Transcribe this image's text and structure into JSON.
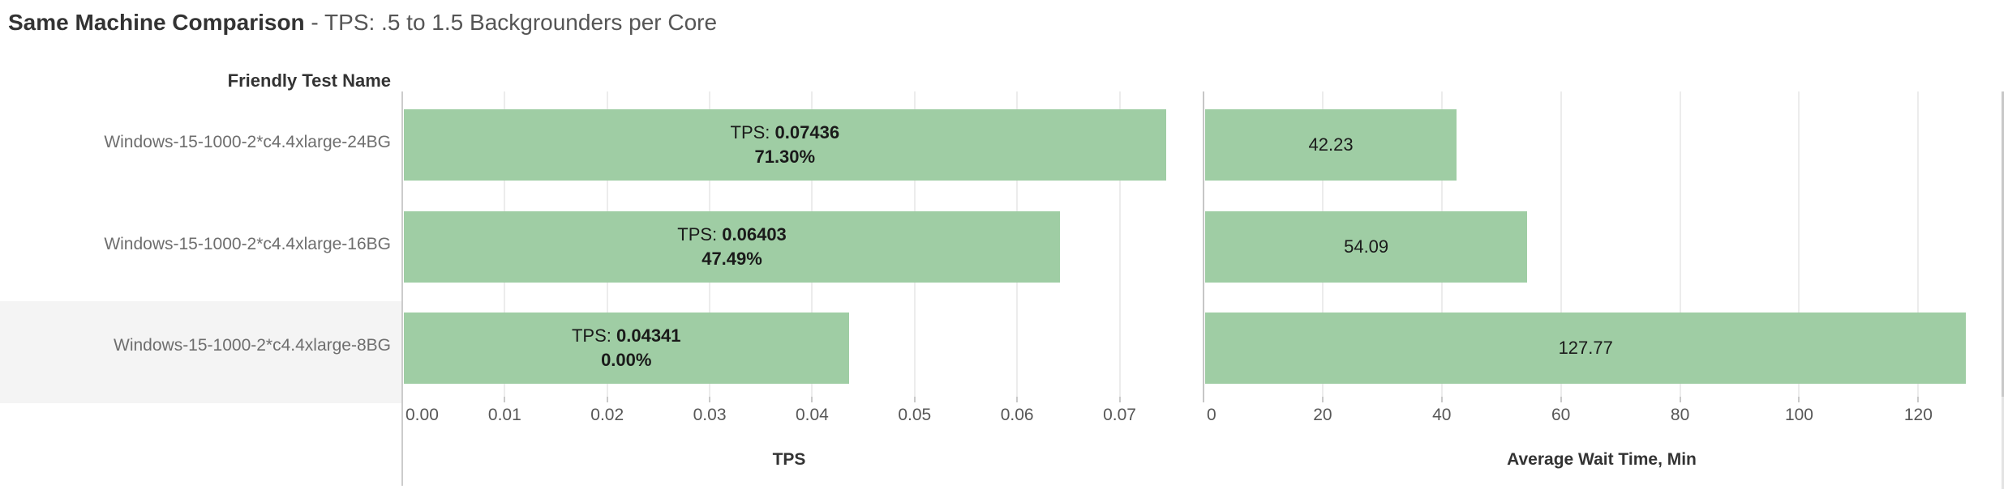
{
  "title": {
    "bold": "Same Machine Comparison",
    "rest": " - TPS: .5 to 1.5 Backgrounders per Core"
  },
  "column_header": "Friendly Test Name",
  "rows": {
    "labels": [
      "Windows-15-1000-2*c4.4xlarge-24BG",
      "Windows-15-1000-2*c4.4xlarge-16BG",
      "Windows-15-1000-2*c4.4xlarge-8BG"
    ],
    "highlighted_index": 2
  },
  "chart_data": [
    {
      "type": "bar",
      "orientation": "horizontal",
      "xlabel": "TPS",
      "xlim": [
        0,
        0.0755
      ],
      "ticks": [
        0,
        0.01,
        0.02,
        0.03,
        0.04,
        0.05,
        0.06,
        0.07
      ],
      "tick_labels": [
        "0.00",
        "0.01",
        "0.02",
        "0.03",
        "0.04",
        "0.05",
        "0.06",
        "0.07"
      ],
      "categories": [
        "Windows-15-1000-2*c4.4xlarge-24BG",
        "Windows-15-1000-2*c4.4xlarge-16BG",
        "Windows-15-1000-2*c4.4xlarge-8BG"
      ],
      "values": [
        0.07436,
        0.06403,
        0.04341
      ],
      "bar_labels": [
        {
          "prefix": "TPS: ",
          "value": "0.07436",
          "line2": "71.30%"
        },
        {
          "prefix": "TPS: ",
          "value": "0.06403",
          "line2": "47.49%"
        },
        {
          "prefix": "TPS: ",
          "value": "0.04341",
          "line2": "0.00%"
        }
      ],
      "grid": true,
      "legend": "none"
    },
    {
      "type": "bar",
      "orientation": "horizontal",
      "xlabel": "Average Wait Time, Min",
      "xlim": [
        0,
        133.7
      ],
      "ticks": [
        0,
        20,
        40,
        60,
        80,
        100,
        120
      ],
      "tick_labels": [
        "0",
        "20",
        "40",
        "60",
        "80",
        "100",
        "120"
      ],
      "categories": [
        "Windows-15-1000-2*c4.4xlarge-24BG",
        "Windows-15-1000-2*c4.4xlarge-16BG",
        "Windows-15-1000-2*c4.4xlarge-8BG"
      ],
      "values": [
        42.23,
        54.09,
        127.77
      ],
      "bar_labels": [
        {
          "value": "42.23"
        },
        {
          "value": "54.09"
        },
        {
          "value": "127.77"
        }
      ],
      "grid": true,
      "legend": "none"
    }
  ],
  "colors": {
    "bar": "#9fcda4",
    "row_highlight": "#f4f4f4",
    "gridline": "#ececec",
    "axis_line": "#cccccc",
    "tick_label": "#575757",
    "row_label": "#6e6e6e",
    "bar_label": "#1a1a1a",
    "title_bold": "#333333",
    "title_rest": "#555555",
    "scrollbar": "#c9c9c9",
    "scrollbar_track": "#e4e4e4"
  }
}
